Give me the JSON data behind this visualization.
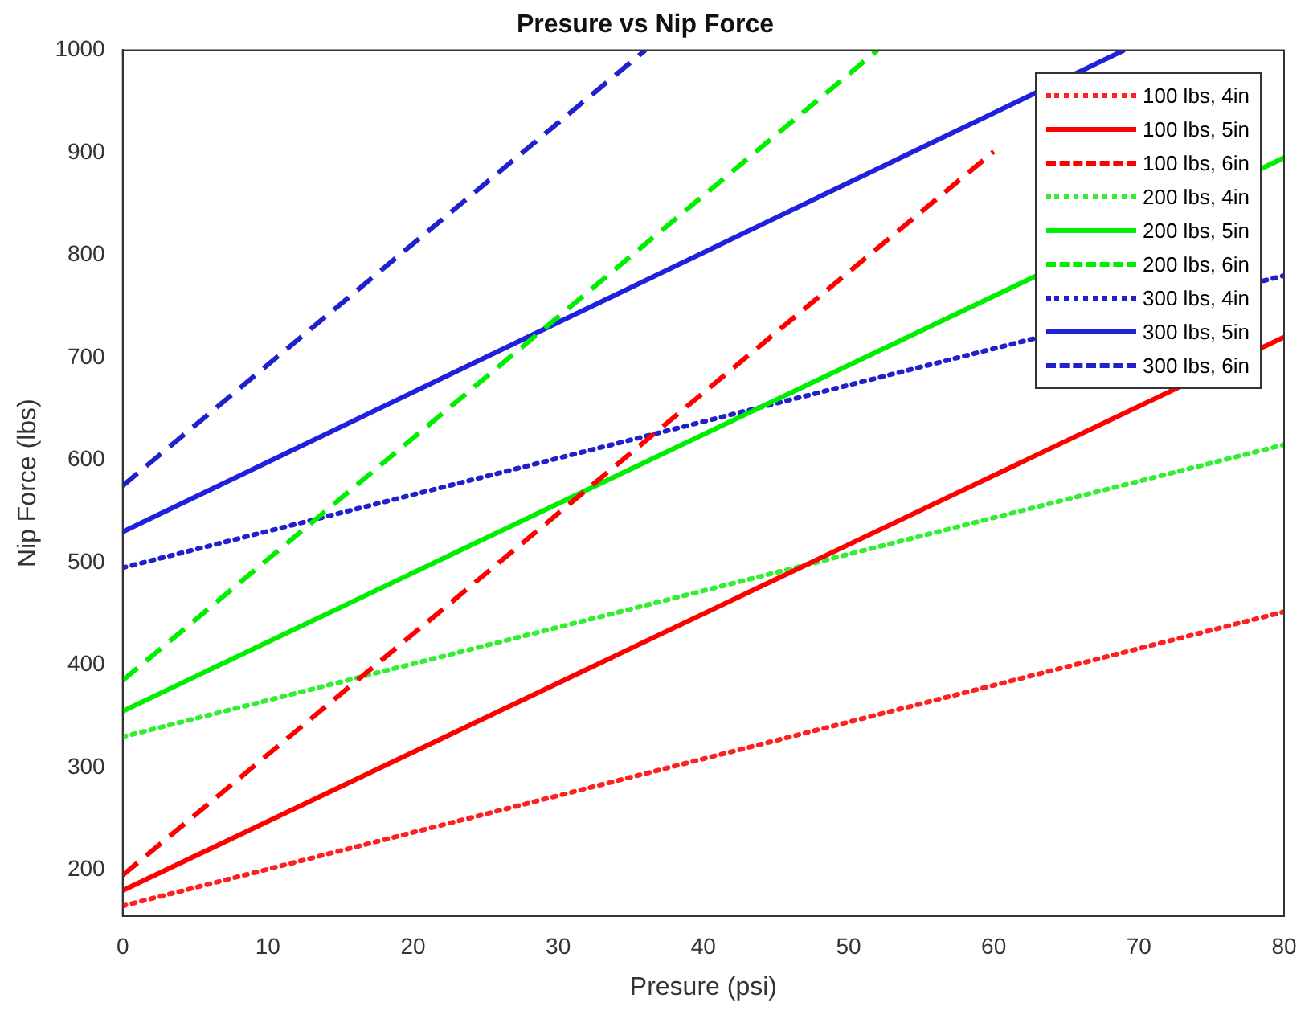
{
  "chart_data": {
    "type": "line",
    "title": "Presure vs Nip Force",
    "xlabel": "Presure (psi)",
    "ylabel": "Nip Force (lbs)",
    "xlim": [
      0,
      80
    ],
    "xticks": [
      0,
      10,
      20,
      30,
      40,
      50,
      60,
      70,
      80
    ],
    "ylim": [
      155,
      1000
    ],
    "yticks": [
      200,
      300,
      400,
      500,
      600,
      700,
      800,
      900,
      1000
    ],
    "grid": false,
    "legend": "top right",
    "marker": "none",
    "series": [
      {
        "name": "100 lbs, 4in",
        "color": "#ff2020",
        "line_style": "dotted",
        "x": [
          0,
          80
        ],
        "values": [
          165,
          452
        ]
      },
      {
        "name": "100 lbs, 5in",
        "color": "#ff0000",
        "line_style": "solid",
        "x": [
          0,
          80
        ],
        "values": [
          180,
          720
        ]
      },
      {
        "name": "100 lbs, 6in",
        "color": "#ff0000",
        "line_style": "dashed",
        "x": [
          0,
          60
        ],
        "values": [
          195,
          901
        ]
      },
      {
        "name": "200 lbs, 4in",
        "color": "#33ee33",
        "line_style": "dotted",
        "x": [
          0,
          80
        ],
        "values": [
          330,
          615
        ]
      },
      {
        "name": "200 lbs, 5in",
        "color": "#00ee00",
        "line_style": "solid",
        "x": [
          0,
          80
        ],
        "values": [
          355,
          895
        ]
      },
      {
        "name": "200 lbs, 6in",
        "color": "#00ee00",
        "line_style": "dashed",
        "x": [
          0,
          52
        ],
        "values": [
          385,
          1000
        ]
      },
      {
        "name": "300 lbs, 4in",
        "color": "#2020cc",
        "line_style": "dotted",
        "x": [
          0,
          80
        ],
        "values": [
          495,
          780
        ]
      },
      {
        "name": "300 lbs, 5in",
        "color": "#2020dd",
        "line_style": "solid",
        "x": [
          0,
          69
        ],
        "values": [
          530,
          1000
        ]
      },
      {
        "name": "300 lbs, 6in",
        "color": "#2020cc",
        "line_style": "dashed",
        "x": [
          0,
          36
        ],
        "values": [
          575,
          1000
        ]
      }
    ]
  }
}
